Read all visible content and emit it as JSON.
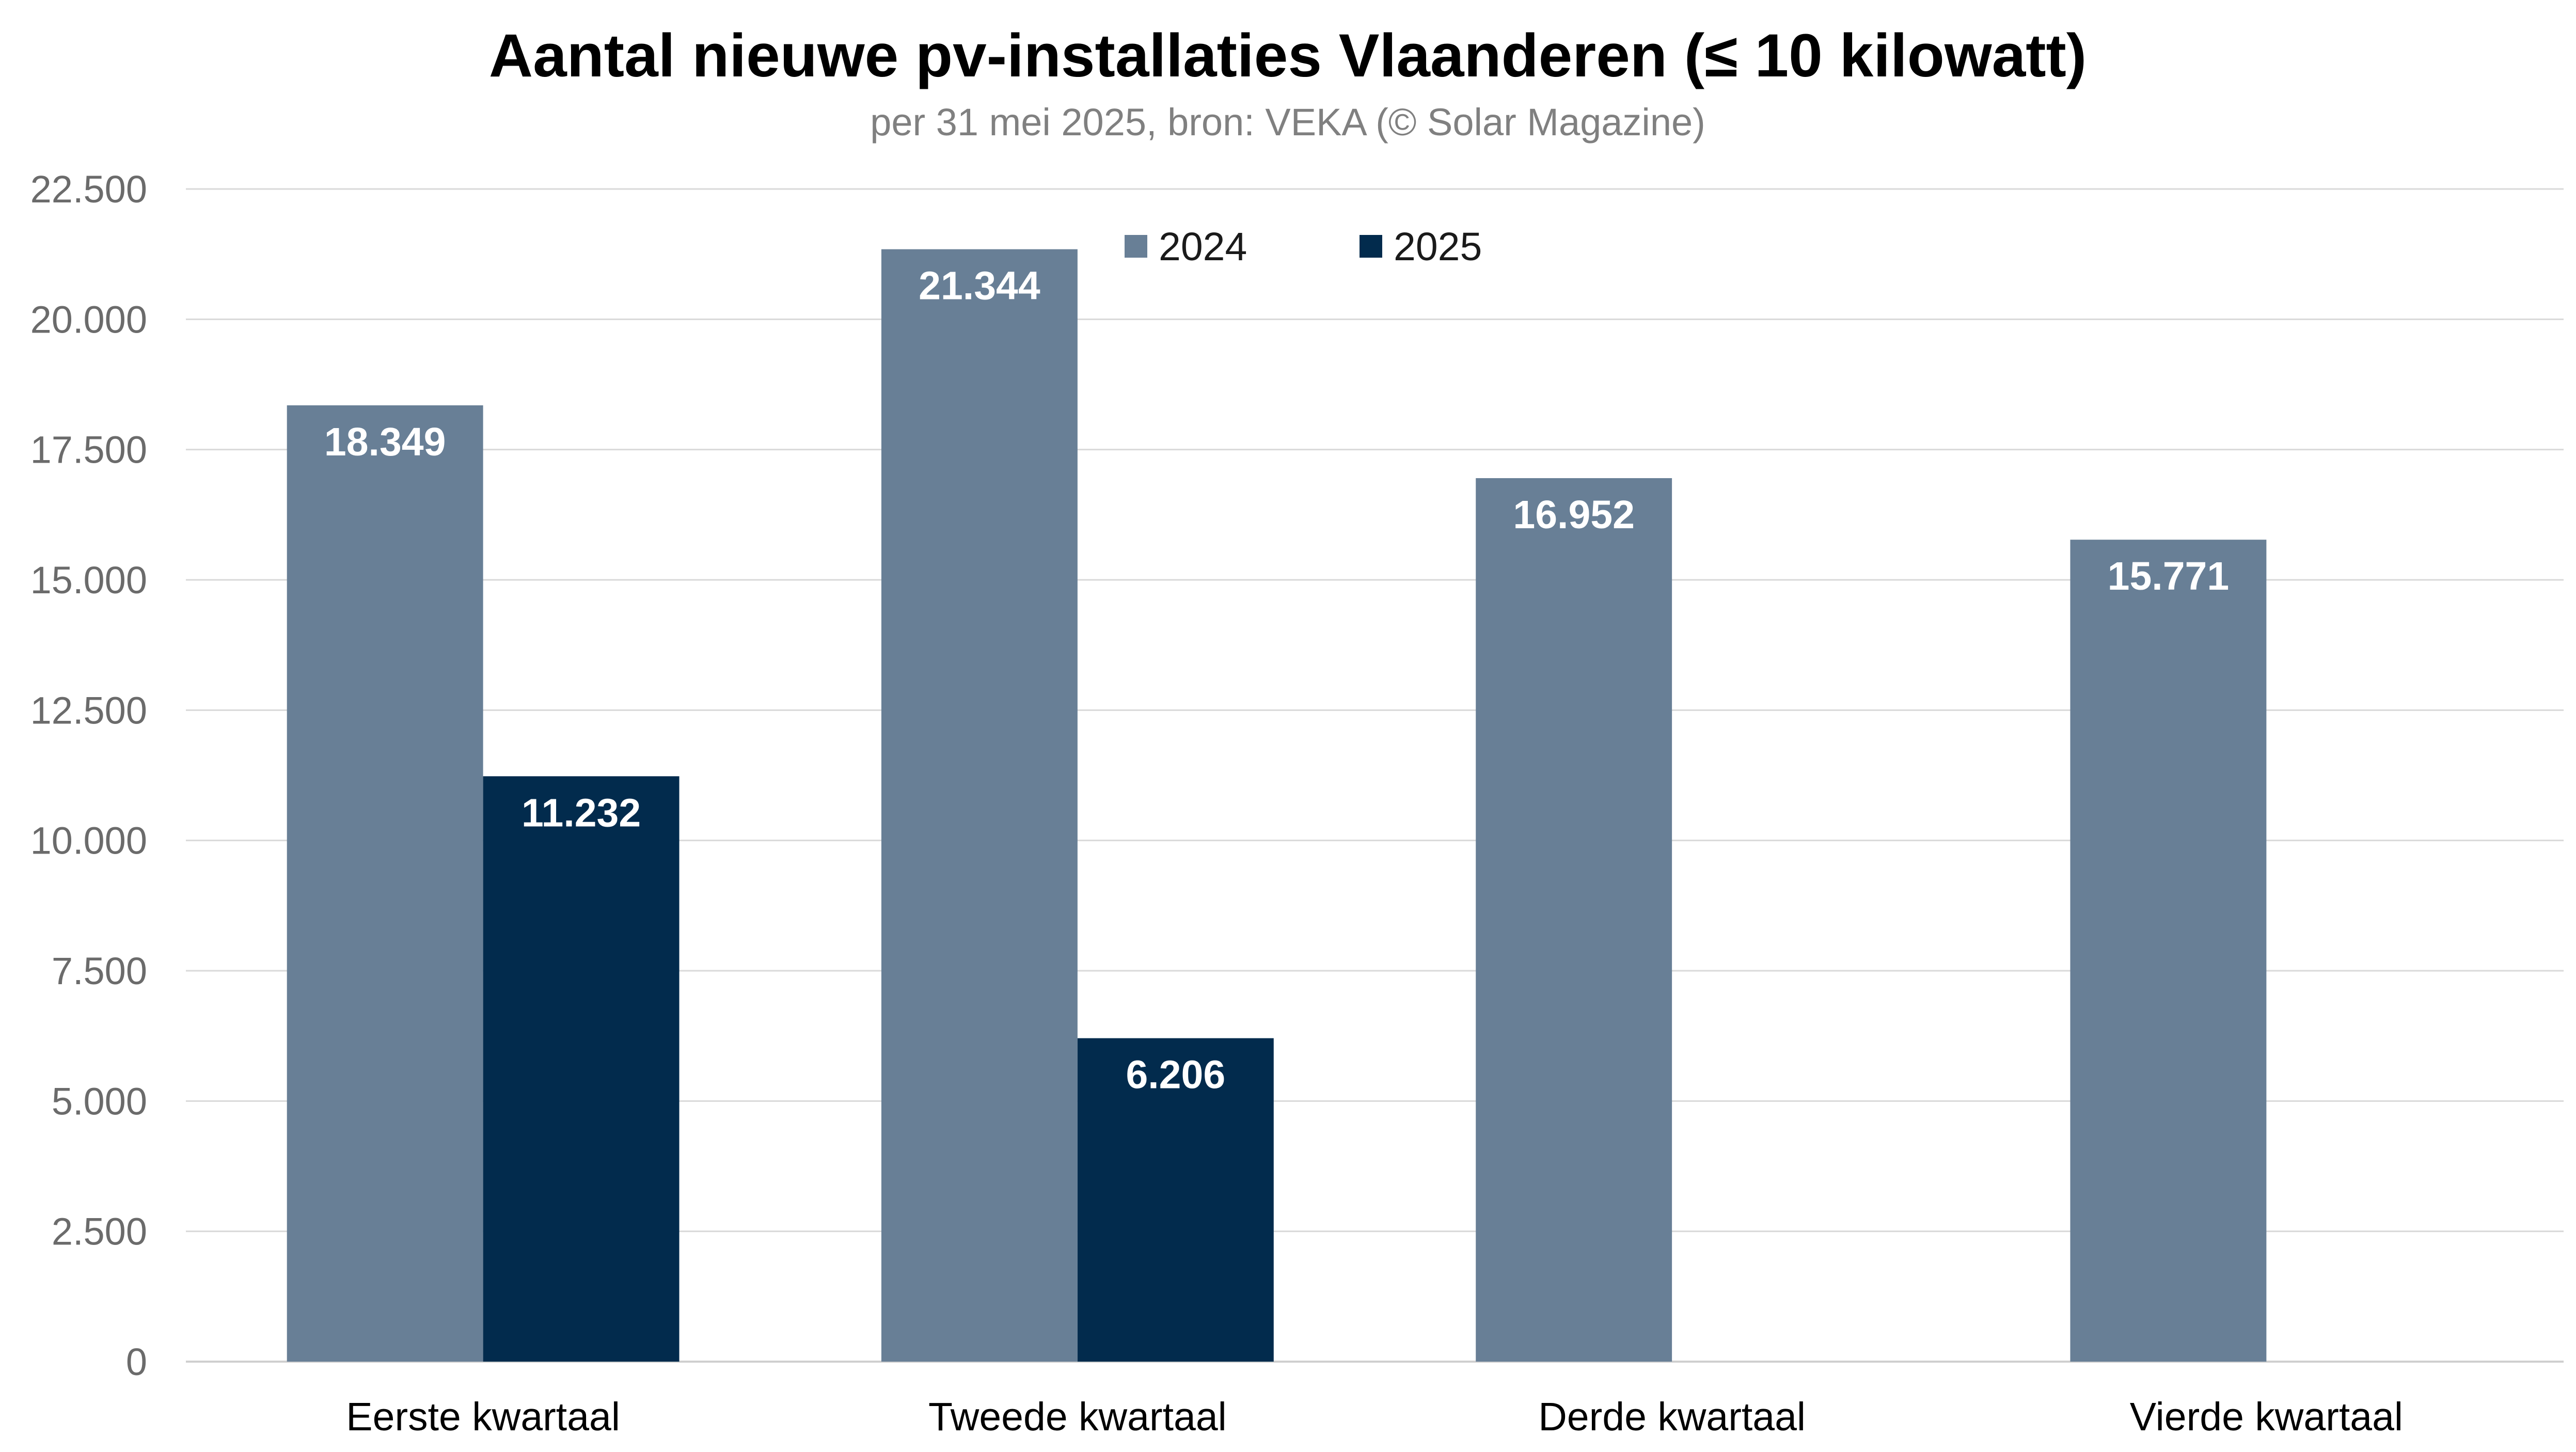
{
  "chart_data": {
    "type": "bar",
    "title": "Aantal nieuwe pv-installaties Vlaanderen (≤ 10 kilowatt)",
    "subtitle": "per 31 mei 2025, bron: VEKA (© Solar Magazine)",
    "categories": [
      "Eerste kwartaal",
      "Tweede kwartaal",
      "Derde kwartaal",
      "Vierde kwartaal"
    ],
    "series": [
      {
        "name": "2024",
        "color": "#687f96",
        "values": [
          18349,
          21344,
          16952,
          15771
        ],
        "labels": [
          "18.349",
          "21.344",
          "16.952",
          "15.771"
        ]
      },
      {
        "name": "2025",
        "color": "#022b4d",
        "values": [
          11232,
          6206,
          null,
          null
        ],
        "labels": [
          "11.232",
          "6.206",
          null,
          null
        ]
      }
    ],
    "ylim": [
      0,
      22500
    ],
    "yticks": [
      0,
      2500,
      5000,
      7500,
      10000,
      12500,
      15000,
      17500,
      20000,
      22500
    ],
    "ytick_labels": [
      "0",
      "2.500",
      "5.000",
      "7.500",
      "10.000",
      "12.500",
      "15.000",
      "17.500",
      "20.000",
      "22.500"
    ],
    "xlabel": "",
    "ylabel": "",
    "grid": true,
    "legend_position": "top-center"
  }
}
